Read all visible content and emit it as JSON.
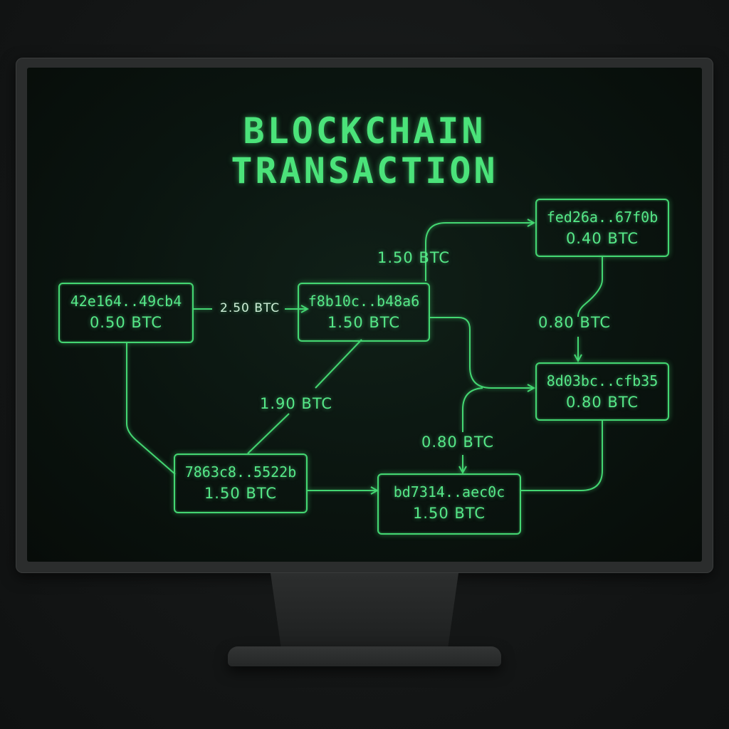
{
  "title": {
    "line1": "BLOCKCHAIN",
    "line2": "TRANSACTION"
  },
  "nodes": {
    "n42e": {
      "hash": "42e164..49cb4",
      "amount": "0.50 BTC"
    },
    "f8b": {
      "hash": "f8b10c..b48a6",
      "amount": "1.50 BTC"
    },
    "fed": {
      "hash": "fed26a..67f0b",
      "amount": "0.40 BTC"
    },
    "d03": {
      "hash": "8d03bc..cfb35",
      "amount": "0.80 BTC"
    },
    "c78": {
      "hash": "7863c8..5522b",
      "amount": "1.50 BTC"
    },
    "bd7": {
      "hash": "bd7314..aec0c",
      "amount": "1.50 BTC"
    }
  },
  "edges": {
    "e_42e_f8b": "2.50 BTC",
    "e_f8b_fed": "1.50 BTC",
    "e_fed_d03": "0.80 BTC",
    "e_c78_f8b": "1.90 BTC",
    "e_to_bd7": "0.80 BTC"
  },
  "colors": {
    "accent": "#44d672",
    "screen": "#0a140f",
    "bezel": "#2b2d2d"
  }
}
